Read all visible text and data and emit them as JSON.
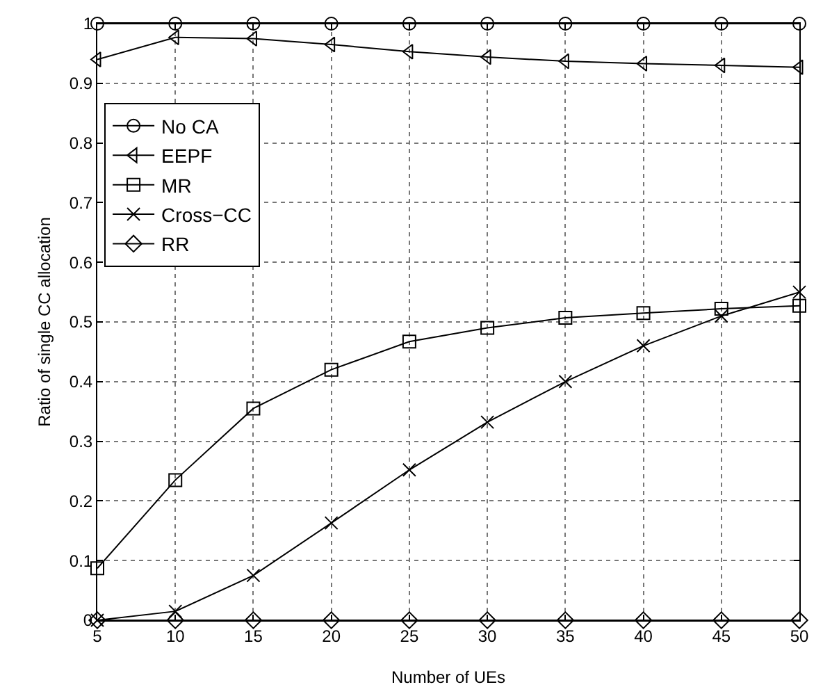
{
  "chart_data": {
    "type": "line",
    "xlabel": "Number of UEs",
    "ylabel": "Ratio of single CC allocation",
    "x": [
      5,
      10,
      15,
      20,
      25,
      30,
      35,
      40,
      45,
      50
    ],
    "series": [
      {
        "name": "No CA",
        "color": "#000000",
        "marker": "circle",
        "values": [
          1,
          1,
          1,
          1,
          1,
          1,
          1,
          1,
          1,
          1
        ]
      },
      {
        "name": "EEPF",
        "color": "#000000",
        "marker": "triangle-left",
        "values": [
          0.94,
          0.977,
          0.975,
          0.965,
          0.953,
          0.944,
          0.937,
          0.933,
          0.93,
          0.927
        ]
      },
      {
        "name": "MR",
        "color": "#000000",
        "marker": "square",
        "values": [
          0.087,
          0.235,
          0.355,
          0.42,
          0.467,
          0.49,
          0.507,
          0.515,
          0.522,
          0.527
        ]
      },
      {
        "name": "Cross−CC",
        "color": "#000000",
        "marker": "cross",
        "values": [
          0,
          0.015,
          0.075,
          0.163,
          0.252,
          0.332,
          0.4,
          0.46,
          0.51,
          0.55
        ]
      },
      {
        "name": "RR",
        "color": "#000000",
        "marker": "diamond",
        "values": [
          0,
          0,
          0,
          0,
          0,
          0,
          0,
          0,
          0,
          0
        ]
      }
    ],
    "xlim": [
      5,
      50
    ],
    "xticks": [
      5,
      10,
      15,
      20,
      25,
      30,
      35,
      40,
      45,
      50
    ],
    "ylim": [
      0,
      1
    ],
    "yticks": [
      0,
      0.1,
      0.2,
      0.3,
      0.4,
      0.5,
      0.6,
      0.7,
      0.8,
      0.9,
      1
    ],
    "grid": true,
    "legend": "left",
    "line_style": "solid"
  }
}
